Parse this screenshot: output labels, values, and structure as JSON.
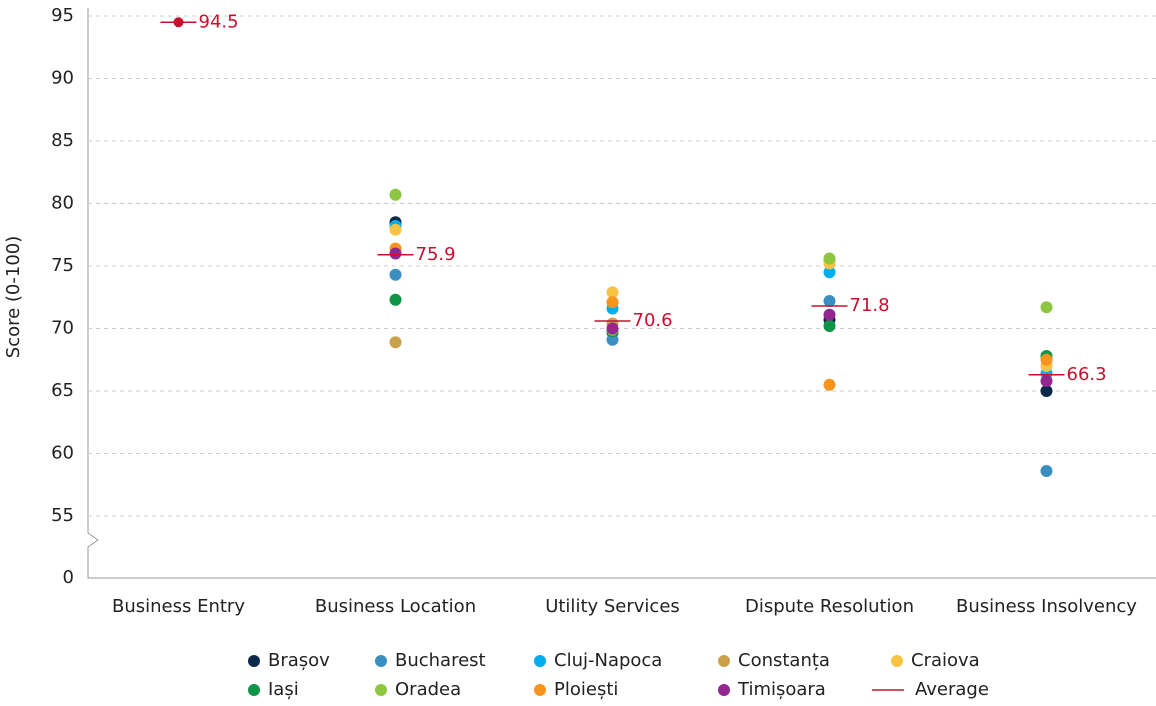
{
  "chart_data": {
    "type": "dot",
    "y_label": "Score (0-100)",
    "categories": [
      "Business Entry",
      "Business Location",
      "Utility Services",
      "Dispute Resolution",
      "Business Insolvency"
    ],
    "series": [
      {
        "name": "Brașov",
        "color": "#0b2a4a",
        "values": [
          null,
          78.5,
          69.7,
          70.7,
          65.0
        ]
      },
      {
        "name": "Bucharest",
        "color": "#3a8fc0",
        "values": [
          null,
          74.3,
          69.1,
          72.2,
          58.6
        ]
      },
      {
        "name": "Cluj-Napoca",
        "color": "#00aeef",
        "values": [
          null,
          78.2,
          71.6,
          74.5,
          66.4
        ]
      },
      {
        "name": "Constanța",
        "color": "#c9a24a",
        "values": [
          null,
          68.9,
          70.4,
          75.4,
          67.6
        ]
      },
      {
        "name": "Craiova",
        "color": "#f6c342",
        "values": [
          null,
          77.9,
          72.9,
          75.2,
          67.0
        ]
      },
      {
        "name": "Iași",
        "color": "#0f9448",
        "values": [
          null,
          72.3,
          69.8,
          70.2,
          67.8
        ]
      },
      {
        "name": "Oradea",
        "color": "#8dc63f",
        "values": [
          null,
          80.7,
          69.9,
          75.6,
          71.7
        ]
      },
      {
        "name": "Ploiești",
        "color": "#f7941d",
        "values": [
          null,
          76.4,
          72.1,
          65.5,
          67.5
        ]
      },
      {
        "name": "Timișoara",
        "color": "#92278f",
        "values": [
          null,
          76.0,
          70.0,
          71.1,
          65.8
        ]
      }
    ],
    "average": {
      "name": "Average",
      "color": "#c8102e",
      "values": [
        94.5,
        75.9,
        70.6,
        71.8,
        66.3
      ]
    },
    "ylim": [
      0,
      95
    ],
    "y_break": [
      0,
      55
    ],
    "yticks": [
      0,
      55,
      60,
      65,
      70,
      75,
      80,
      85,
      90,
      95
    ],
    "grid": true
  }
}
